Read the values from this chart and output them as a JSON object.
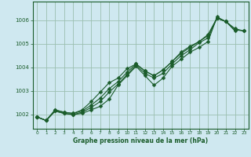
{
  "title": "Graphe pression niveau de la mer (hPa)",
  "bg_color": "#cfe8f0",
  "grid_color": "#9bbfb0",
  "line_color": "#1a5c2a",
  "xlim_min": -0.5,
  "xlim_max": 23.5,
  "ylim_min": 1001.4,
  "ylim_max": 1006.8,
  "yticks": [
    1002,
    1003,
    1004,
    1005,
    1006
  ],
  "xticks": [
    0,
    1,
    2,
    3,
    4,
    5,
    6,
    7,
    8,
    9,
    10,
    11,
    12,
    13,
    14,
    15,
    16,
    17,
    18,
    19,
    20,
    21,
    22,
    23
  ],
  "series": [
    [
      1001.9,
      1001.75,
      1002.15,
      1002.05,
      1002.0,
      1002.05,
      1002.2,
      1002.35,
      1002.65,
      1003.25,
      1003.65,
      1004.05,
      1003.65,
      1003.25,
      1003.55,
      1004.05,
      1004.35,
      1004.65,
      1004.85,
      1005.1,
      1006.15,
      1005.95,
      null,
      null
    ],
    [
      1001.9,
      1001.75,
      1002.15,
      1002.05,
      1002.0,
      1002.1,
      1002.3,
      1002.55,
      1002.95,
      1003.3,
      1003.7,
      1004.1,
      1003.75,
      1003.55,
      1003.75,
      1004.15,
      1004.5,
      1004.75,
      1005.05,
      1005.25,
      1006.1,
      1005.95,
      1005.55,
      null
    ],
    [
      1001.9,
      1001.75,
      1002.2,
      1002.1,
      1002.05,
      1002.15,
      1002.4,
      1002.7,
      1003.1,
      1003.4,
      1003.8,
      1004.15,
      1003.85,
      1003.65,
      1003.9,
      1004.25,
      1004.6,
      1004.85,
      1005.1,
      1005.35,
      1006.1,
      1005.95,
      1005.6,
      1005.55
    ],
    [
      1001.9,
      1001.75,
      1002.2,
      1002.1,
      1002.05,
      1002.2,
      1002.55,
      1002.95,
      1003.35,
      1003.55,
      1003.95,
      1004.15,
      1003.85,
      1003.65,
      1003.9,
      1004.25,
      1004.65,
      1004.9,
      1005.1,
      1005.4,
      1006.1,
      1005.95,
      1005.65,
      1005.55
    ]
  ]
}
